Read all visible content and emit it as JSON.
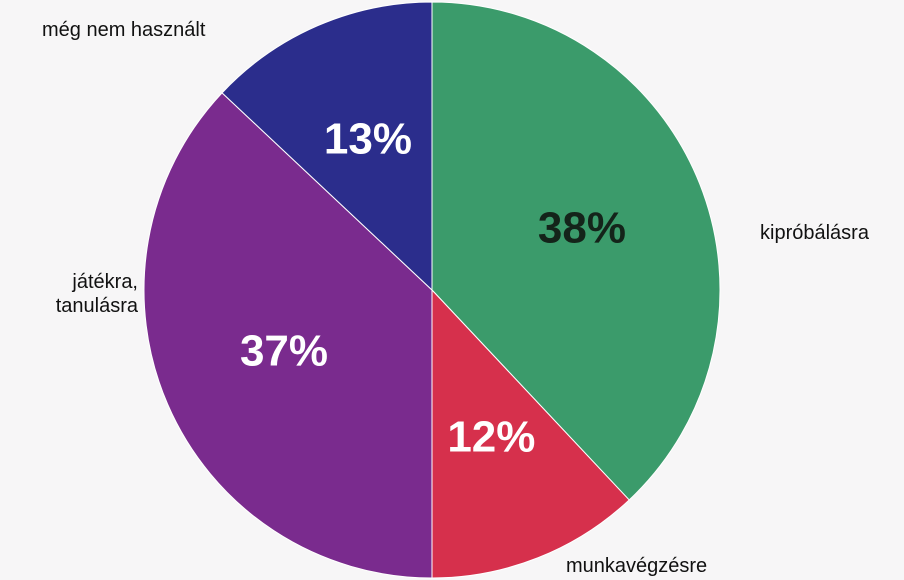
{
  "chart_data": {
    "type": "pie",
    "categories": [
      "kipróbálásra",
      "munkavégzésre",
      "játékra, tanulásra",
      "még nem használt"
    ],
    "values": [
      38,
      12,
      37,
      13
    ],
    "value_labels": [
      "38%",
      "12%",
      "37%",
      "13%"
    ],
    "colors": [
      "#3b9b6b",
      "#d6304c",
      "#7a2b8e",
      "#2b2d8c"
    ]
  }
}
